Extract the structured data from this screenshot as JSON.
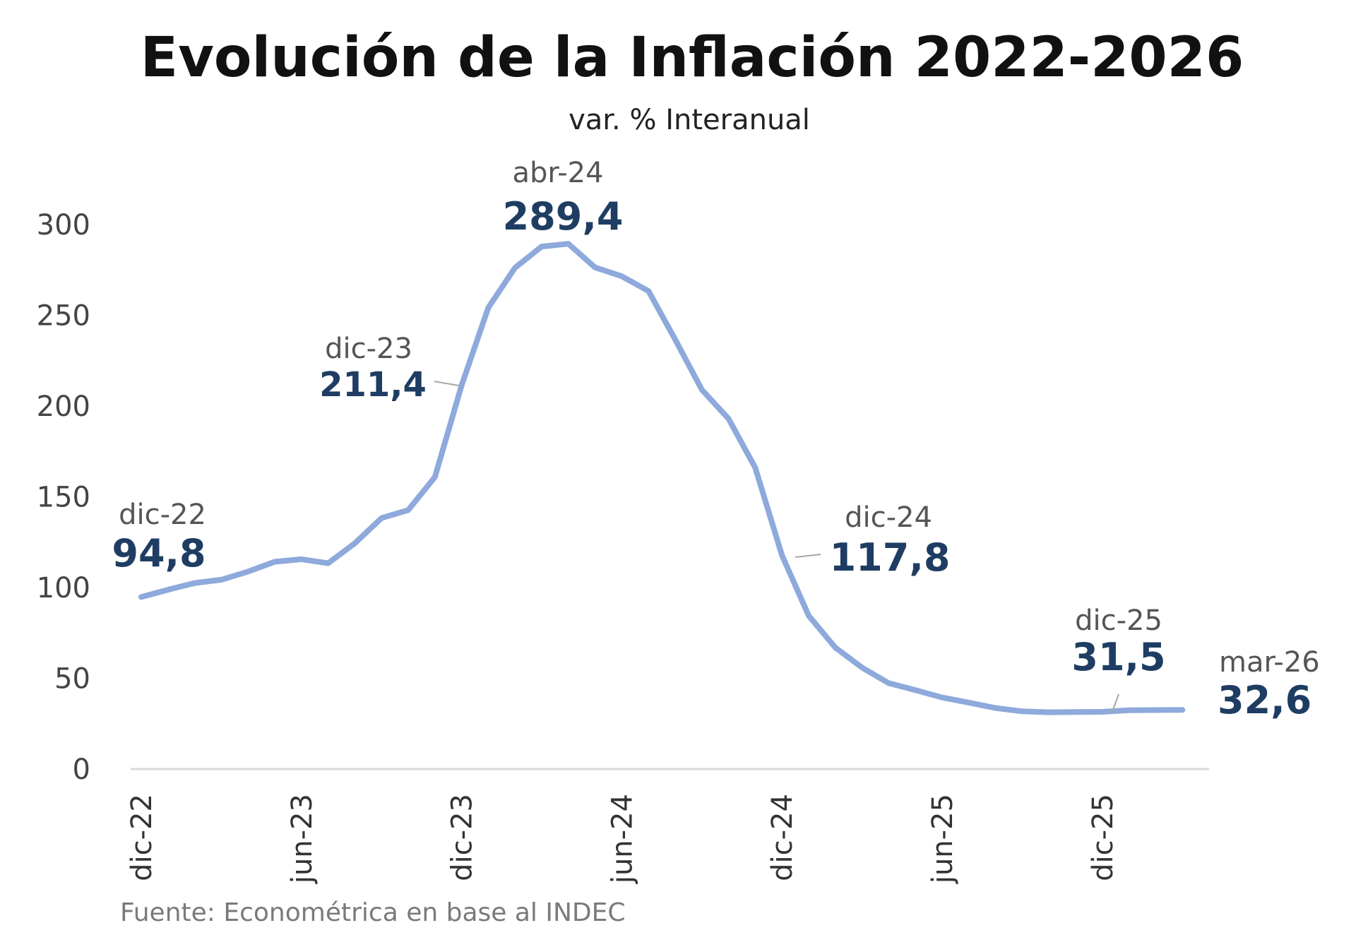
{
  "chart_data": {
    "type": "line",
    "title": "Evolución de la Inflación 2022-2026",
    "subtitle": "var. % Interanual",
    "source": "Fuente: Econométrica en base al INDEC",
    "ylim": [
      0,
      300
    ],
    "yticks": [
      0,
      50,
      100,
      150,
      200,
      250,
      300
    ],
    "xtick_labels": [
      "dic-22",
      "jun-23",
      "dic-23",
      "jun-24",
      "dic-24",
      "jun-25",
      "dic-25"
    ],
    "grid": false,
    "series": [
      {
        "color": "#8ea9db",
        "x": [
          "dic-22",
          "ene-23",
          "feb-23",
          "mar-23",
          "abr-23",
          "may-23",
          "jun-23",
          "jul-23",
          "ago-23",
          "sep-23",
          "oct-23",
          "nov-23",
          "dic-23",
          "ene-24",
          "feb-24",
          "mar-24",
          "abr-24",
          "may-24",
          "jun-24",
          "jul-24",
          "ago-24",
          "sep-24",
          "oct-24",
          "nov-24",
          "dic-24",
          "ene-25",
          "feb-25",
          "mar-25",
          "abr-25",
          "may-25",
          "jun-25",
          "jul-25",
          "ago-25",
          "sep-25",
          "oct-25",
          "nov-25",
          "dic-25",
          "ene-26",
          "feb-26",
          "mar-26"
        ],
        "values": [
          94.8,
          98.8,
          102.5,
          104.3,
          108.8,
          114.2,
          115.6,
          113.4,
          124.4,
          138.3,
          142.7,
          160.9,
          211.4,
          254.2,
          276.2,
          287.9,
          289.4,
          276.4,
          271.5,
          263.4,
          236.7,
          209.0,
          193.0,
          166.0,
          117.8,
          84.5,
          66.9,
          55.9,
          47.3,
          43.5,
          39.4,
          36.6,
          33.6,
          31.8,
          31.3,
          31.4,
          31.5,
          32.4,
          32.5,
          32.6
        ]
      }
    ],
    "annotations": [
      {
        "date": "dic-22",
        "value": "94,8"
      },
      {
        "date": "dic-23",
        "value": "211,4"
      },
      {
        "date": "abr-24",
        "value": "289,4"
      },
      {
        "date": "dic-24",
        "value": "117,8"
      },
      {
        "date": "dic-25",
        "value": "31,5"
      },
      {
        "date": "mar-26",
        "value": "32,6"
      }
    ],
    "colors": {
      "line": "#8ea9db",
      "value_label": "#1f3d63",
      "axis": "#d9d9d9"
    }
  }
}
